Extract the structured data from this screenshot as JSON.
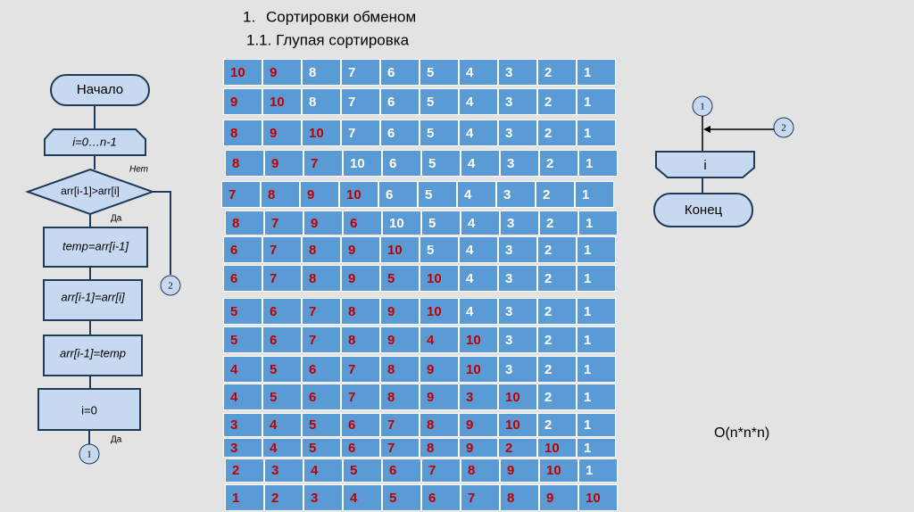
{
  "header": {
    "number": "1.",
    "title": "Сортировки обменом",
    "subtitle": "1.1. Глупая сортировка"
  },
  "flowchart": {
    "start": "Начало",
    "loop": "i=0…n-1",
    "no": "Нет",
    "condition": "arr[i-1]>arr[i]",
    "yes": "Да",
    "step1": "temp=arr[i-1]",
    "step2": "arr[i-1]=arr[i]",
    "step3": "arr[i-1]=temp",
    "reset": "i=0",
    "yes2": "Да",
    "connector1": "1",
    "connector2": "2",
    "right_connector1": "1",
    "right_connector2": "2",
    "right_loop_end": "i",
    "end": "Конец"
  },
  "complexity": "O(n*n*n)",
  "table": {
    "highlight_color": "#c00000",
    "normal_color": "#ffffff",
    "cell_color": "#5b9bd5",
    "rows": [
      {
        "values": [
          10,
          9,
          8,
          7,
          6,
          5,
          4,
          3,
          2,
          1
        ],
        "red_cells": 2
      },
      {
        "values": [
          9,
          10,
          8,
          7,
          6,
          5,
          4,
          3,
          2,
          1
        ],
        "red_cells": 2
      },
      {
        "values": [
          8,
          9,
          10,
          7,
          6,
          5,
          4,
          3,
          2,
          1
        ],
        "red_cells": 3
      },
      {
        "values": [
          8,
          9,
          7,
          10,
          6,
          5,
          4,
          3,
          2,
          1
        ],
        "red_cells": 3
      },
      {
        "values": [
          7,
          8,
          9,
          10,
          6,
          5,
          4,
          3,
          2,
          1
        ],
        "red_cells": 4
      },
      {
        "values": [
          8,
          7,
          9,
          6,
          10,
          5,
          4,
          3,
          2,
          1
        ],
        "red_cells": 4
      },
      {
        "values": [
          6,
          7,
          8,
          9,
          10,
          5,
          4,
          3,
          2,
          1
        ],
        "red_cells": 5
      },
      {
        "values": [
          6,
          7,
          8,
          9,
          5,
          10,
          4,
          3,
          2,
          1
        ],
        "red_cells": 6
      },
      {
        "values": [
          5,
          6,
          7,
          8,
          9,
          10,
          4,
          3,
          2,
          1
        ],
        "red_cells": 6
      },
      {
        "values": [
          5,
          6,
          7,
          8,
          9,
          4,
          10,
          3,
          2,
          1
        ],
        "red_cells": 7
      },
      {
        "values": [
          4,
          5,
          6,
          7,
          8,
          9,
          10,
          3,
          2,
          1
        ],
        "red_cells": 7
      },
      {
        "values": [
          4,
          5,
          6,
          7,
          8,
          9,
          3,
          10,
          2,
          1
        ],
        "red_cells": 8
      },
      {
        "values": [
          3,
          4,
          5,
          6,
          7,
          8,
          9,
          10,
          2,
          1
        ],
        "red_cells": 8
      },
      {
        "values": [
          3,
          4,
          5,
          6,
          7,
          8,
          9,
          2,
          10,
          1
        ],
        "red_cells": 9
      },
      {
        "values": [
          2,
          3,
          4,
          5,
          6,
          7,
          8,
          9,
          10,
          1
        ],
        "red_cells": 9
      },
      {
        "values": [
          1,
          2,
          3,
          4,
          5,
          6,
          7,
          8,
          9,
          10
        ],
        "red_cells": 10
      }
    ]
  }
}
